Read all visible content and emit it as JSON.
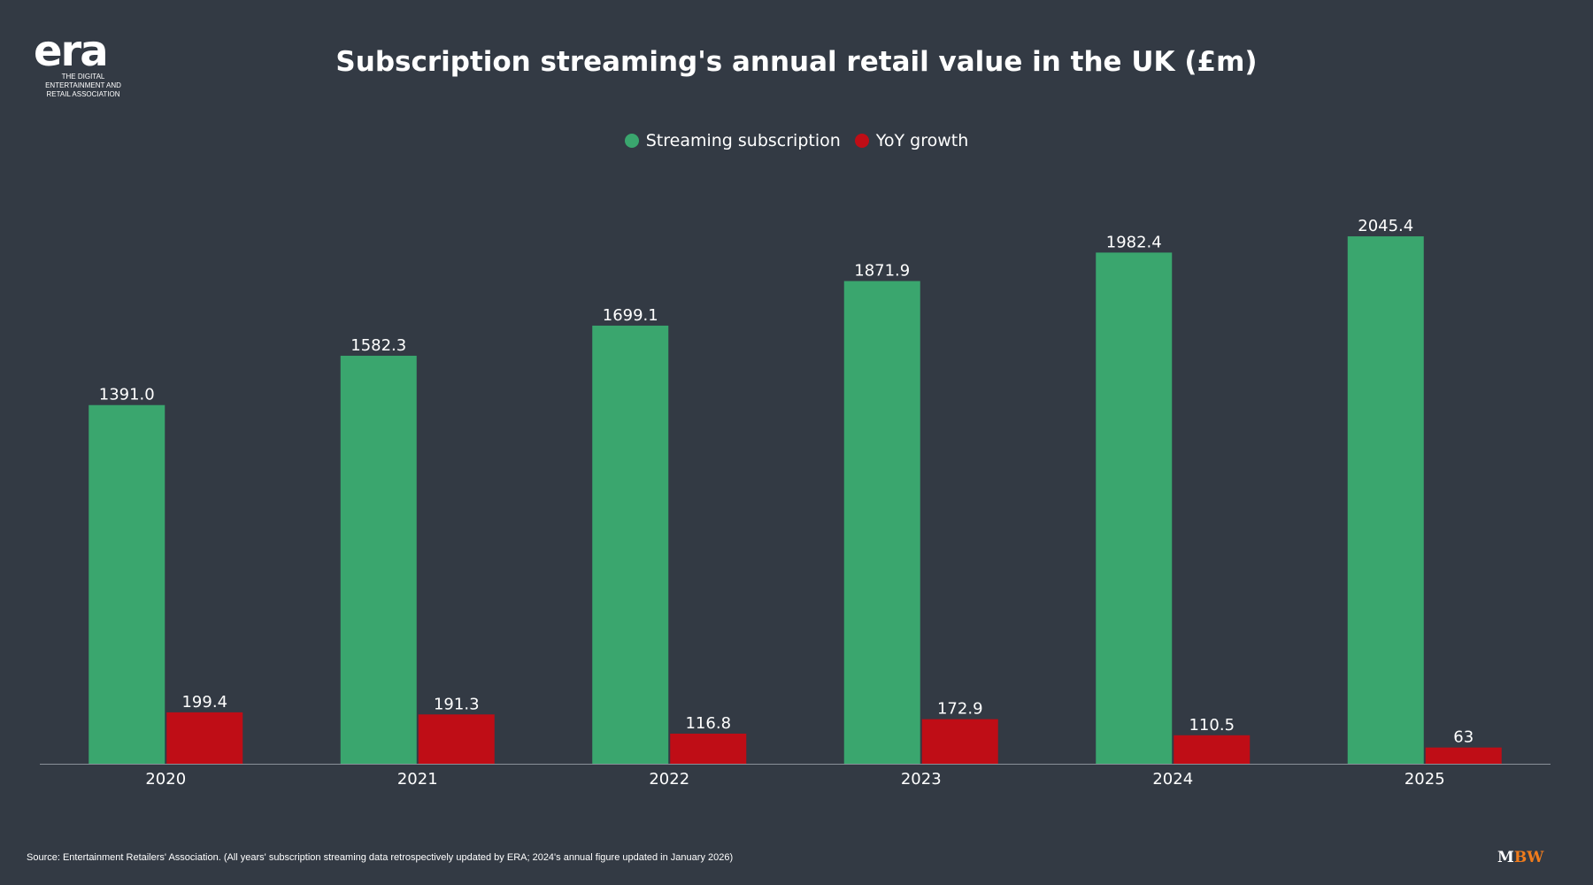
{
  "logo": {
    "mark": "era",
    "subtitle": "THE DIGITAL ENTERTAINMENT AND RETAIL ASSOCIATION"
  },
  "brand": {
    "left": "M",
    "right": "BW"
  },
  "source": "Source: Entertainment Retailers' Association. (All years' subscription streaming data retrospectively updated by ERA; 2024's annual figure updated in January 2026)",
  "colors": {
    "background": "#333a44",
    "streaming": "#3aa66e",
    "growth": "#bf0d16",
    "axis": "#8a9099",
    "brand_accent": "#f07c1c"
  },
  "chart_data": {
    "type": "bar",
    "title": "Subscription streaming's annual retail value in the UK (£m)",
    "categories": [
      "2020",
      "2021",
      "2022",
      "2023",
      "2024",
      "2025"
    ],
    "series": [
      {
        "name": "Streaming subscription",
        "values": [
          1391.0,
          1582.3,
          1699.1,
          1871.9,
          1982.4,
          2045.4
        ],
        "labels": [
          "1391.0",
          "1582.3",
          "1699.1",
          "1871.9",
          "1982.4",
          "2045.4"
        ]
      },
      {
        "name": "YoY growth",
        "values": [
          199.4,
          191.3,
          116.8,
          172.9,
          110.5,
          63
        ],
        "labels": [
          "199.4",
          "191.3",
          "116.8",
          "172.9",
          "110.5",
          "63"
        ]
      }
    ],
    "ylim": [
      0,
      2200
    ],
    "grid": false,
    "legend": "top-center",
    "xlabel": "",
    "ylabel": ""
  }
}
